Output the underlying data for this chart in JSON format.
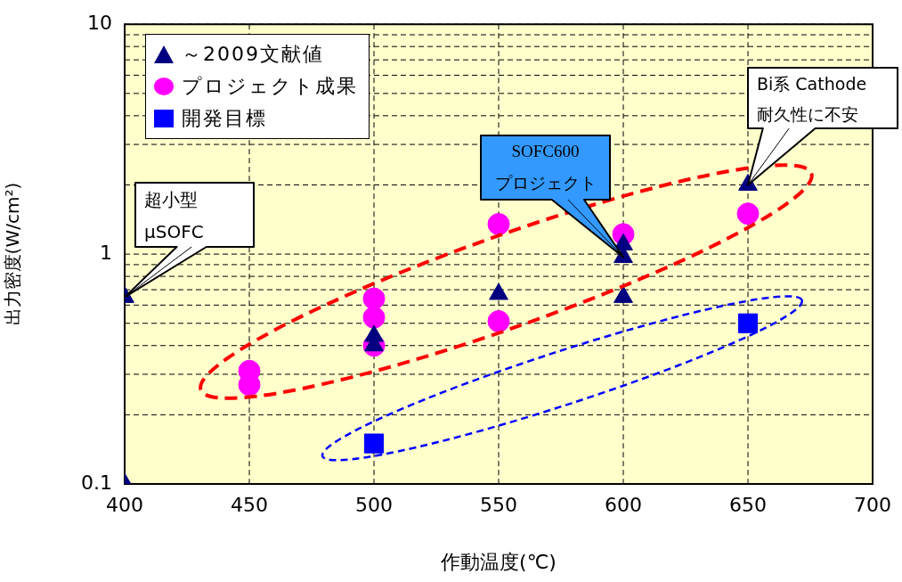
{
  "chart_data": {
    "type": "scatter",
    "xlabel": "作動温度(℃)",
    "ylabel": "出力密度(W/cm²)",
    "xlim": [
      400,
      700
    ],
    "xticks": [
      400,
      450,
      500,
      550,
      600,
      650,
      700
    ],
    "ylim": [
      0.1,
      10
    ],
    "yticks": [
      0.1,
      1,
      10
    ],
    "log": "y",
    "grid": true,
    "legend": "top left",
    "series": [
      {
        "name": "～2009文献値",
        "color": "#000080",
        "marker": "triangle",
        "x": [
          400,
          400,
          500,
          500,
          550,
          600,
          600,
          600,
          650
        ],
        "values": [
          0.65,
          0.1,
          0.44,
          0.4,
          0.67,
          1.1,
          0.97,
          0.65,
          2.0
        ]
      },
      {
        "name": "プロジェクト成果",
        "color": "#ff00ff",
        "marker": "circle",
        "x": [
          450,
          450,
          500,
          500,
          500,
          550,
          550,
          600,
          650
        ],
        "values": [
          0.31,
          0.27,
          0.64,
          0.53,
          0.4,
          1.35,
          0.51,
          1.22,
          1.5
        ]
      },
      {
        "name": "開発目標",
        "color": "#0000ff",
        "marker": "square",
        "x": [
          500,
          650
        ],
        "values": [
          0.15,
          0.5
        ]
      }
    ],
    "annotations": [
      {
        "text": "超小型\nμSOFC",
        "x": 400,
        "y": 0.65
      },
      {
        "text": "SOFC600\nプロジェクト",
        "x": 600,
        "y": 0.97
      },
      {
        "text": "Bi系 Cathode\n耐久性に不安",
        "x": 650,
        "y": 2.0
      }
    ]
  }
}
